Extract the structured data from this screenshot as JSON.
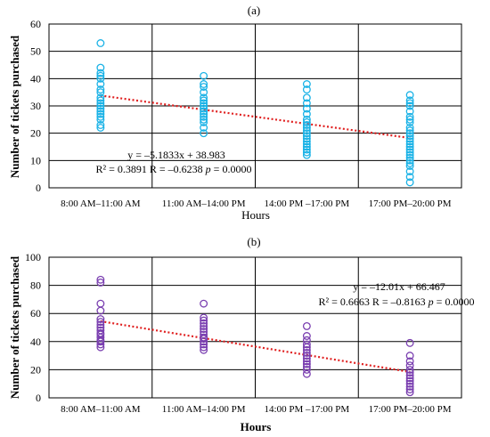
{
  "chart_data": [
    {
      "type": "scatter",
      "title": "(a)",
      "xlabel": "Hours",
      "ylabel": "Number of tickets purchased",
      "categories": [
        "8:00 AM–11:00 AM",
        "11:00 AM–14:00 PM",
        "14:00 PM –17:00 PM",
        "17:00 PM–20:00 PM"
      ],
      "ylim": [
        0,
        60
      ],
      "yticks": [
        0,
        10,
        20,
        30,
        40,
        50,
        60
      ],
      "grid": true,
      "marker_color": "#1ab2e6",
      "trend_color": "#e02020",
      "series": [
        {
          "x": 1,
          "values": [
            53,
            44,
            42,
            41,
            40,
            38,
            36,
            35,
            33,
            32,
            31,
            30,
            29,
            28,
            27,
            26,
            25,
            23,
            22
          ]
        },
        {
          "x": 2,
          "values": [
            41,
            38,
            37,
            35,
            33,
            32,
            31,
            30,
            29,
            28,
            27,
            26,
            25,
            24,
            22,
            20
          ]
        },
        {
          "x": 3,
          "values": [
            38,
            36,
            33,
            31,
            29,
            27,
            25,
            24,
            23,
            22,
            21,
            20,
            19,
            18,
            17,
            16,
            15,
            14,
            13,
            12
          ]
        },
        {
          "x": 4,
          "values": [
            34,
            32,
            31,
            30,
            28,
            26,
            25,
            24,
            22,
            21,
            20,
            19,
            18,
            17,
            16,
            15,
            14,
            13,
            12,
            11,
            10,
            9,
            8,
            6,
            4,
            2
          ]
        }
      ],
      "trendline": {
        "slope": -5.1833,
        "intercept": 38.983
      },
      "annotation": [
        "y = –5.1833x + 38.983",
        "R² = 0.3891 R = –0.6238 ",
        "p",
        " = 0.0000"
      ]
    },
    {
      "type": "scatter",
      "title": "(b)",
      "xlabel": "Hours",
      "ylabel": "Number of tickets purchased",
      "categories": [
        "8:00 AM–11:00 AM",
        "11:00 AM–14:00 PM",
        "14:00 PM –17:00 PM",
        "17:00 PM–20:00 PM"
      ],
      "ylim": [
        0,
        100
      ],
      "yticks": [
        0,
        20,
        40,
        60,
        80,
        100
      ],
      "grid": true,
      "marker_color": "#7a3fb0",
      "trend_color": "#e02020",
      "series": [
        {
          "x": 1,
          "values": [
            84,
            82,
            67,
            62,
            56,
            54,
            52,
            50,
            48,
            46,
            45,
            43,
            41,
            40,
            38,
            36
          ]
        },
        {
          "x": 2,
          "values": [
            67,
            57,
            55,
            53,
            51,
            49,
            47,
            45,
            43,
            42,
            40,
            38,
            36,
            34
          ]
        },
        {
          "x": 3,
          "values": [
            51,
            44,
            41,
            38,
            36,
            34,
            32,
            30,
            28,
            26,
            24,
            22,
            20,
            17
          ]
        },
        {
          "x": 4,
          "values": [
            39,
            30,
            26,
            23,
            20,
            18,
            16,
            14,
            12,
            10,
            8,
            6,
            4
          ]
        }
      ],
      "trendline": {
        "slope": -12.01,
        "intercept": 66.467
      },
      "annotation": [
        "y = –12.01x + 66.467",
        "R² = 0.6663 R = –0.8163 ",
        "p",
        " = 0.0000"
      ]
    }
  ]
}
